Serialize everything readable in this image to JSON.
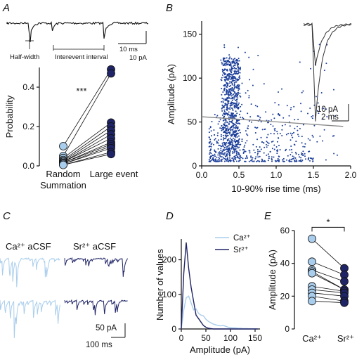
{
  "panels": {
    "A": "A",
    "B": "B",
    "C": "C",
    "D": "D",
    "E": "E"
  },
  "colors": {
    "ca": "#a9cdec",
    "sr": "#1f2466",
    "dark": "#111111",
    "dot": "#1d3f9a",
    "fit": "#888888"
  },
  "trace_a": {
    "label_half": "Half-width",
    "label_interval": "Interevent interval",
    "scale_time": "10 ms",
    "scale_amp": "10 pA"
  },
  "chart_data": [
    {
      "id": "A",
      "type": "scatter",
      "title": "",
      "ylabel": "Probability",
      "categories": [
        "Random\nSummation",
        "Large event"
      ],
      "ylim": [
        0,
        0.5
      ],
      "yticks": [
        "0.0",
        "0.2",
        "0.4"
      ],
      "significance": "***",
      "series": [
        {
          "values": [
            0.1,
            0.05,
            0.04,
            0.03,
            0.025,
            0.02,
            0.02,
            0.015,
            0.015,
            0.01,
            0.01,
            0.005,
            0.005
          ]
        },
        {
          "values": [
            0.49,
            0.47,
            0.22,
            0.2,
            0.18,
            0.16,
            0.14,
            0.12,
            0.11,
            0.1,
            0.09,
            0.07,
            0.06
          ]
        }
      ]
    },
    {
      "id": "B",
      "type": "scatter",
      "xlabel": "10-90% rise time (ms)",
      "ylabel": "Amplitude (pA)",
      "xlim": [
        0,
        2.0
      ],
      "ylim": [
        0,
        165
      ],
      "xticks": [
        "0.0",
        "0.5",
        "1.0",
        "1.5",
        "2.0"
      ],
      "yticks": [
        "0",
        "50",
        "100",
        "150"
      ],
      "fit_line": {
        "x": [
          0,
          1.9
        ],
        "y": [
          56,
          45
        ]
      },
      "scale_amp": "10 pA",
      "scale_time": "2 ms"
    },
    {
      "id": "C",
      "type": "table",
      "labels": [
        "Ca²⁺ aCSF",
        "Sr²⁺ aCSF"
      ],
      "scale_amp": "50 pA",
      "scale_time": "100 ms"
    },
    {
      "id": "D",
      "type": "line",
      "xlabel": "Amplitude (pA)",
      "ylabel": "Number of values",
      "xlim": [
        0,
        160
      ],
      "ylim": [
        0,
        260
      ],
      "xticks": [
        "0",
        "50",
        "100",
        "150"
      ],
      "yticks": [
        "0",
        "100",
        "200"
      ],
      "x": [
        0,
        5,
        10,
        15,
        20,
        25,
        30,
        35,
        40,
        45,
        50,
        55,
        60,
        65,
        70,
        75,
        80,
        85,
        90,
        95,
        100,
        105,
        110,
        115,
        120,
        125,
        130,
        135,
        140,
        145,
        150,
        155
      ],
      "series": [
        {
          "name": "Ca²⁺",
          "values": [
            0,
            55,
            90,
            95,
            75,
            55,
            58,
            45,
            40,
            38,
            28,
            22,
            18,
            14,
            12,
            10,
            9,
            10,
            8,
            5,
            4,
            3,
            3,
            2,
            2,
            1,
            1,
            1,
            0,
            0,
            0,
            0
          ]
        },
        {
          "name": "Sr²⁺",
          "values": [
            0,
            160,
            250,
            175,
            120,
            80,
            40,
            30,
            20,
            10,
            5,
            2,
            1,
            0,
            0,
            0,
            0,
            0,
            0,
            0,
            0,
            0,
            0,
            0,
            0,
            0,
            0,
            0,
            0,
            0,
            0,
            0
          ]
        }
      ]
    },
    {
      "id": "E",
      "type": "scatter",
      "ylabel": "Amplitude (pA)",
      "categories": [
        "Ca²⁺",
        "Sr²⁺"
      ],
      "ylim": [
        0,
        60
      ],
      "yticks": [
        "0",
        "20",
        "40",
        "60"
      ],
      "significance": "*",
      "series": [
        {
          "values": [
            55,
            41,
            36,
            35,
            34,
            26,
            24,
            22,
            20,
            17
          ]
        },
        {
          "values": [
            37,
            33,
            29,
            24,
            24,
            23,
            22,
            20,
            17,
            16
          ]
        }
      ]
    }
  ]
}
